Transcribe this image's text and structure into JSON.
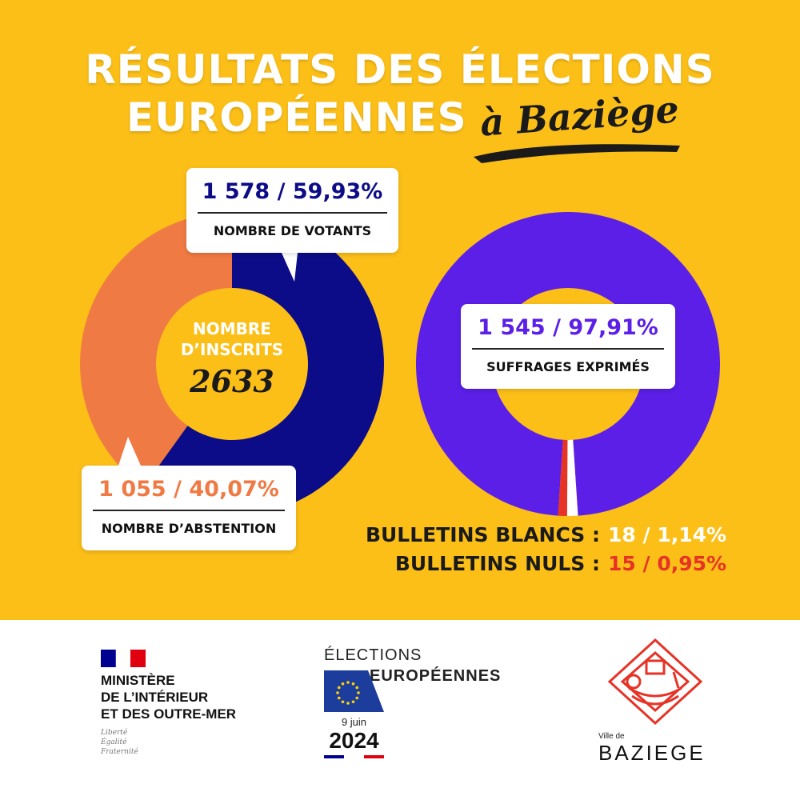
{
  "title": {
    "line1": "RÉSULTATS DES ÉLECTIONS",
    "line2": "EUROPÉENNES",
    "script": "à Baziège"
  },
  "chart_data": [
    {
      "type": "pie",
      "center_label": "NOMBRE D’INSCRITS",
      "total": 2633,
      "total_label": "2633",
      "slices": [
        {
          "name": "NOMBRE DE VOTANTS",
          "value": 1578,
          "percent": 59.93,
          "value_label": "1 578",
          "percent_label": "59,93%",
          "color": "#0c0c88"
        },
        {
          "name": "NOMBRE D’ABSTENTION",
          "value": 1055,
          "percent": 40.07,
          "value_label": "1 055",
          "percent_label": "40,07%",
          "color": "#f07a43"
        }
      ]
    },
    {
      "type": "pie",
      "slices": [
        {
          "name": "SUFFRAGES EXPRIMÉS",
          "value": 1545,
          "percent": 97.91,
          "value_label": "1 545",
          "percent_label": "97,91%",
          "color": "#5b1fe8"
        },
        {
          "name": "BULLETINS BLANCS",
          "value": 18,
          "percent": 1.14,
          "value_label": "18",
          "percent_label": "1,14%",
          "color": "#ffffff"
        },
        {
          "name": "BULLETINS NULS",
          "value": 15,
          "percent": 0.95,
          "value_label": "15",
          "percent_label": "0,95%",
          "color": "#e63326"
        }
      ]
    }
  ],
  "bulletins": {
    "blancs_label": "BULLETINS BLANCS :",
    "blancs_value": "18 / 1,14%",
    "nuls_label": "BULLETINS NULS :",
    "nuls_value": "15 / 0,95%"
  },
  "footer": {
    "ministere": {
      "l1": "MINISTÈRE",
      "l2": "DE L’INTÉRIEUR",
      "l3": "ET DES OUTRE-MER",
      "d1": "Liberté",
      "d2": "Égalité",
      "d3": "Fraternité"
    },
    "elections": {
      "l1": "ÉLECTIONS",
      "l2": "EUROPÉENNES",
      "date": "9 juin",
      "year": "2024"
    },
    "ville": {
      "small": "Ville de",
      "name": "BAZIEGE"
    }
  },
  "colors": {
    "background": "#fcbf18",
    "votants": "#0c0c88",
    "abstention": "#f07a43",
    "exprimes": "#5b1fe8",
    "nuls": "#e63326"
  }
}
